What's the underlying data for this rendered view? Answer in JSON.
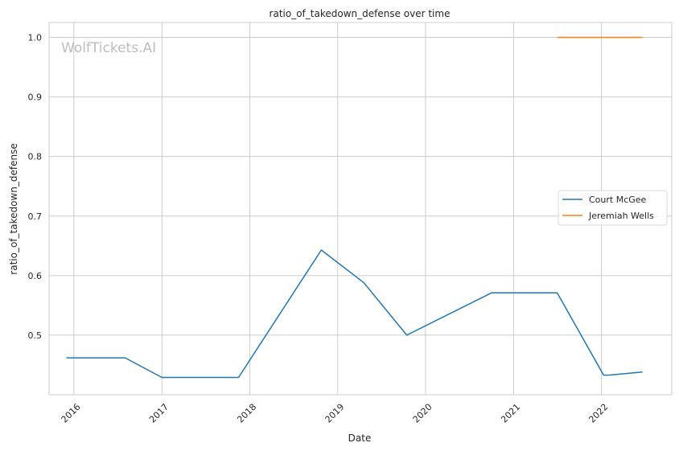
{
  "watermark": "WolfTickets.AI",
  "chart_data": {
    "type": "line",
    "title": "ratio_of_takedown_defense over time",
    "xlabel": "Date",
    "ylabel": "ratio_of_takedown_defense",
    "xlim": [
      "2015-09-20",
      "2022-10-20"
    ],
    "ylim": [
      0.4,
      1.025
    ],
    "x_ticks": [
      "2016",
      "2017",
      "2018",
      "2019",
      "2020",
      "2021",
      "2022"
    ],
    "y_ticks": [
      "0.5",
      "0.6",
      "0.7",
      "0.8",
      "0.9",
      "1.0"
    ],
    "grid": true,
    "legend_position": "center-right",
    "series": [
      {
        "name": "Court McGee",
        "color": "#1f77b4",
        "points": [
          {
            "x": "2015-12-01",
            "y": 0.462
          },
          {
            "x": "2016-08-01",
            "y": 0.462
          },
          {
            "x": "2017-01-01",
            "y": 0.429
          },
          {
            "x": "2017-11-15",
            "y": 0.429
          },
          {
            "x": "2018-10-25",
            "y": 0.643
          },
          {
            "x": "2019-04-20",
            "y": 0.588
          },
          {
            "x": "2019-10-15",
            "y": 0.5
          },
          {
            "x": "2020-10-01",
            "y": 0.571
          },
          {
            "x": "2021-07-01",
            "y": 0.571
          },
          {
            "x": "2022-01-10",
            "y": 0.433
          },
          {
            "x": "2022-02-01",
            "y": 0.433
          },
          {
            "x": "2022-06-20",
            "y": 0.438
          }
        ]
      },
      {
        "name": "Jeremiah Wells",
        "color": "#ff7f0e",
        "points": [
          {
            "x": "2021-07-01",
            "y": 1.0
          },
          {
            "x": "2022-06-20",
            "y": 1.0
          }
        ]
      }
    ]
  }
}
